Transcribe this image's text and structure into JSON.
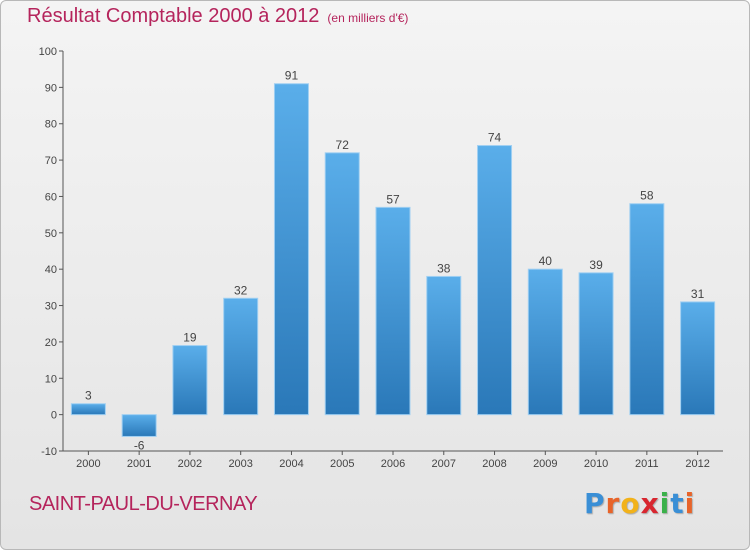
{
  "title": "Résultat Comptable 2000 à 2012",
  "subtitle": "(en milliers d'€)",
  "commune": "SAINT-PAUL-DU-VERNAY",
  "logo": {
    "letters": [
      "P",
      "r",
      "o",
      "x",
      "i",
      "t",
      "i"
    ],
    "colors": [
      "#3a8fd6",
      "#e8642a",
      "#f2b21a",
      "#d8262f",
      "#3bb14a",
      "#3a8fd6",
      "#e8642a"
    ]
  },
  "colors": {
    "bar_top": "#5aaeea",
    "bar_bottom": "#2a78b8",
    "title": "#b5245c"
  },
  "chart_data": {
    "type": "bar",
    "categories": [
      "2000",
      "2001",
      "2002",
      "2003",
      "2004",
      "2005",
      "2006",
      "2007",
      "2008",
      "2009",
      "2010",
      "2011",
      "2012"
    ],
    "values": [
      3,
      -6,
      19,
      32,
      91,
      72,
      57,
      38,
      74,
      40,
      39,
      58,
      31
    ],
    "ylim": [
      -10,
      100
    ],
    "yticks": [
      -10,
      0,
      10,
      20,
      30,
      40,
      50,
      60,
      70,
      80,
      90,
      100
    ],
    "grid": false,
    "data_labels": true
  }
}
